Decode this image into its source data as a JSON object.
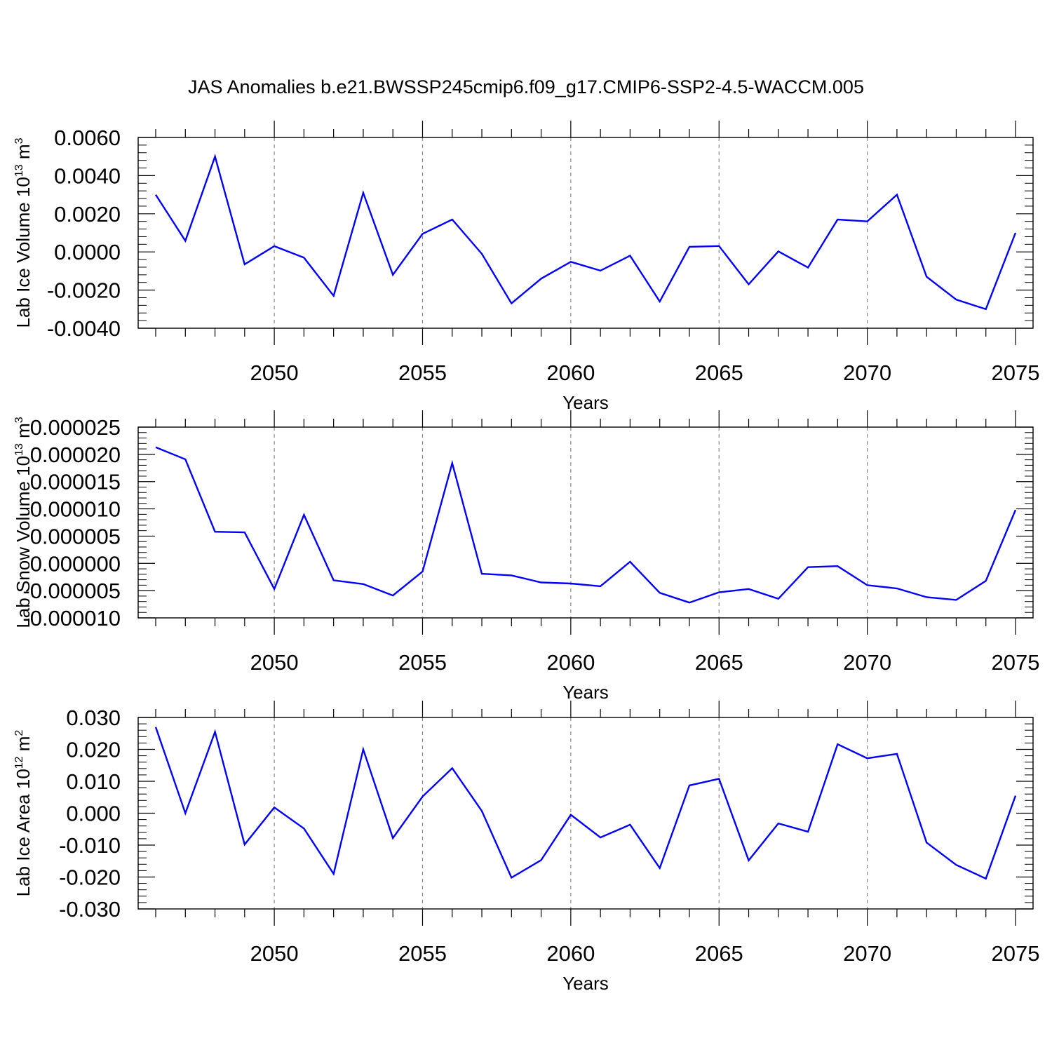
{
  "title": "JAS Anomalies b.e21.BWSSP245cmip6.f09_g17.CMIP6-SSP2-4.5-WACCM.005",
  "colors": {
    "line": "#0000ff",
    "axes": "#000000",
    "grid": "#888888"
  },
  "chart_data": [
    {
      "type": "line",
      "ylabel_text": "Lab Ice Volume 10",
      "ylabel_exp": "13",
      "ylabel_unit": " m",
      "ylabel_unit_exp": "3",
      "xlabel": "Years",
      "xlim": [
        2046,
        2075
      ],
      "ylim": [
        -0.004,
        0.006
      ],
      "yticks": [
        "-0.0040",
        "-0.0020",
        "0.0000",
        "0.0020",
        "0.0040",
        "0.0060"
      ],
      "ytick_values": [
        -0.004,
        -0.002,
        0,
        0.002,
        0.004,
        0.006
      ],
      "xticks": [
        "2050",
        "2055",
        "2060",
        "2065",
        "2070",
        "2075"
      ],
      "xtick_values": [
        2050,
        2055,
        2060,
        2065,
        2070,
        2075
      ],
      "grid_x": true,
      "x": [
        2046,
        2047,
        2048,
        2049,
        2050,
        2051,
        2052,
        2053,
        2054,
        2055,
        2056,
        2057,
        2058,
        2059,
        2060,
        2061,
        2062,
        2063,
        2064,
        2065,
        2066,
        2067,
        2068,
        2069,
        2070,
        2071,
        2072,
        2073,
        2074,
        2075
      ],
      "values": [
        0.003,
        0.00058,
        0.005,
        -0.00065,
        0.0003,
        -0.0003,
        -0.0023,
        0.0031,
        -0.0012,
        0.00095,
        0.0017,
        -0.0001,
        -0.0027,
        -0.0014,
        -0.00052,
        -0.00098,
        -0.0002,
        -0.0026,
        0.00027,
        0.00031,
        -0.0017,
        3e-05,
        -0.00082,
        0.0017,
        0.0016,
        0.003,
        -0.0013,
        -0.0025,
        -0.003,
        0.001
      ]
    },
    {
      "type": "line",
      "ylabel_text": "Lab Snow Volume 10",
      "ylabel_exp": "13",
      "ylabel_unit": " m",
      "ylabel_unit_exp": "3",
      "xlabel": "Years",
      "xlim": [
        2046,
        2075
      ],
      "ylim": [
        -1e-05,
        2.5e-05
      ],
      "yticks": [
        "-0.000010",
        "-0.000005",
        "0.000000",
        "0.000005",
        "0.000010",
        "0.000015",
        "0.000020",
        "0.000025"
      ],
      "ytick_values": [
        -1e-05,
        -5e-06,
        0,
        5e-06,
        1e-05,
        1.5e-05,
        2e-05,
        2.5e-05
      ],
      "xticks": [
        "2050",
        "2055",
        "2060",
        "2065",
        "2070",
        "2075"
      ],
      "xtick_values": [
        2050,
        2055,
        2060,
        2065,
        2070,
        2075
      ],
      "grid_x": true,
      "x": [
        2046,
        2047,
        2048,
        2049,
        2050,
        2051,
        2052,
        2053,
        2054,
        2055,
        2056,
        2057,
        2058,
        2059,
        2060,
        2061,
        2062,
        2063,
        2064,
        2065,
        2066,
        2067,
        2068,
        2069,
        2070,
        2071,
        2072,
        2073,
        2074,
        2075
      ],
      "values": [
        2.13e-05,
        1.91e-05,
        5.8e-06,
        5.7e-06,
        -4.7e-06,
        8.9e-06,
        -3.1e-06,
        -3.8e-06,
        -5.9e-06,
        -1.5e-06,
        1.84e-05,
        -1.9e-06,
        -2.2e-06,
        -3.5e-06,
        -3.7e-06,
        -4.2e-06,
        3e-07,
        -5.4e-06,
        -7.2e-06,
        -5.3e-06,
        -4.7e-06,
        -6.5e-06,
        -7e-07,
        -5e-07,
        -4e-06,
        -4.6e-06,
        -6.2e-06,
        -6.7e-06,
        -3.2e-06,
        9.8e-06
      ]
    },
    {
      "type": "line",
      "ylabel_text": "Lab Ice Area 10",
      "ylabel_exp": "12",
      "ylabel_unit": " m",
      "ylabel_unit_exp": "2",
      "xlabel": "Years",
      "xlim": [
        2046,
        2075
      ],
      "ylim": [
        -0.03,
        0.03
      ],
      "yticks": [
        "-0.030",
        "-0.020",
        "-0.010",
        "0.000",
        "0.010",
        "0.020",
        "0.030"
      ],
      "ytick_values": [
        -0.03,
        -0.02,
        -0.01,
        0,
        0.01,
        0.02,
        0.03
      ],
      "xticks": [
        "2050",
        "2055",
        "2060",
        "2065",
        "2070",
        "2075"
      ],
      "xtick_values": [
        2050,
        2055,
        2060,
        2065,
        2070,
        2075
      ],
      "grid_x": true,
      "x": [
        2046,
        2047,
        2048,
        2049,
        2050,
        2051,
        2052,
        2053,
        2054,
        2055,
        2056,
        2057,
        2058,
        2059,
        2060,
        2061,
        2062,
        2063,
        2064,
        2065,
        2066,
        2067,
        2068,
        2069,
        2070,
        2071,
        2072,
        2073,
        2074,
        2075
      ],
      "values": [
        0.027,
        0.0,
        0.0255,
        -0.0098,
        0.0018,
        -0.0048,
        -0.019,
        0.02,
        -0.0078,
        0.0052,
        0.0141,
        0.0007,
        -0.0202,
        -0.0147,
        -0.0005,
        -0.0076,
        -0.0036,
        -0.0172,
        0.0087,
        0.0108,
        -0.0148,
        -0.0032,
        -0.0058,
        0.0216,
        0.0172,
        0.0186,
        -0.0092,
        -0.0162,
        -0.0205,
        0.0055
      ]
    }
  ]
}
